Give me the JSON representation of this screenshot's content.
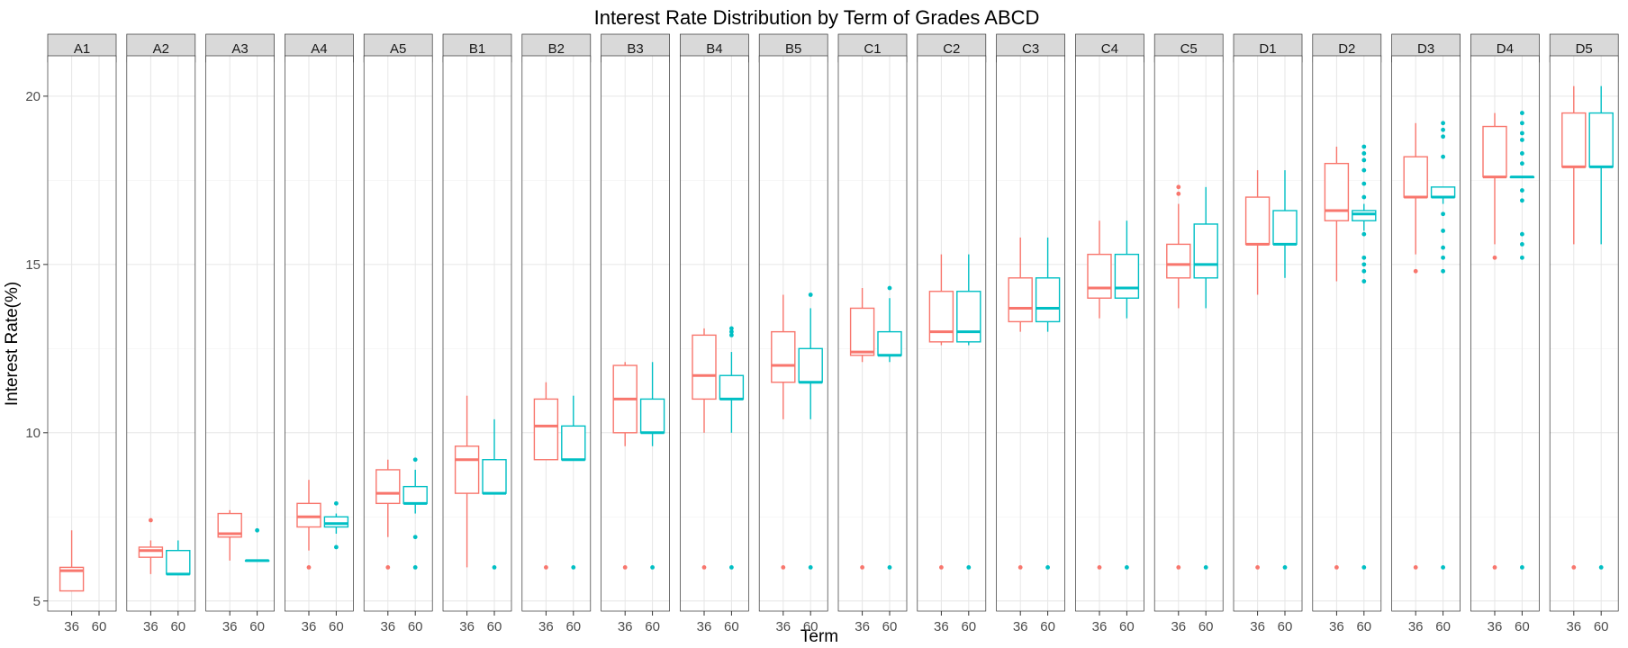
{
  "chart_data": {
    "type": "boxplot",
    "title": "Interest Rate Distribution by Term of Grades ABCD",
    "xlabel": "Term",
    "ylabel": "Interest Rate(%)",
    "ylim": [
      4.7,
      21.2
    ],
    "y_ticks": [
      5,
      10,
      15,
      20
    ],
    "grid": true,
    "legend": "none",
    "categories": [
      "36",
      "60"
    ],
    "series_colors": {
      "36": "#F8766D",
      "60": "#00BFC4"
    },
    "panels": [
      {
        "label": "A1",
        "boxes": [
          {
            "term": "36",
            "lower_whisker": 5.3,
            "q1": 5.3,
            "median": 5.9,
            "q3": 6.0,
            "upper_whisker": 7.1,
            "outliers": []
          }
        ]
      },
      {
        "label": "A2",
        "boxes": [
          {
            "term": "36",
            "lower_whisker": 5.8,
            "q1": 6.3,
            "median": 6.5,
            "q3": 6.6,
            "upper_whisker": 6.8,
            "outliers": [
              7.4
            ]
          },
          {
            "term": "60",
            "lower_whisker": 5.8,
            "q1": 5.8,
            "median": 5.8,
            "q3": 6.5,
            "upper_whisker": 6.8,
            "outliers": []
          }
        ]
      },
      {
        "label": "A3",
        "boxes": [
          {
            "term": "36",
            "lower_whisker": 6.2,
            "q1": 6.9,
            "median": 7.0,
            "q3": 7.6,
            "upper_whisker": 7.7,
            "outliers": []
          },
          {
            "term": "60",
            "lower_whisker": 6.2,
            "q1": 6.2,
            "median": 6.2,
            "q3": 6.2,
            "upper_whisker": 6.2,
            "outliers": [
              7.1
            ]
          }
        ]
      },
      {
        "label": "A4",
        "boxes": [
          {
            "term": "36",
            "lower_whisker": 6.5,
            "q1": 7.2,
            "median": 7.5,
            "q3": 7.9,
            "upper_whisker": 8.6,
            "outliers": [
              6.0
            ]
          },
          {
            "term": "60",
            "lower_whisker": 7.0,
            "q1": 7.2,
            "median": 7.3,
            "q3": 7.5,
            "upper_whisker": 7.6,
            "outliers": [
              6.6,
              7.9
            ]
          }
        ]
      },
      {
        "label": "A5",
        "boxes": [
          {
            "term": "36",
            "lower_whisker": 6.9,
            "q1": 7.9,
            "median": 8.2,
            "q3": 8.9,
            "upper_whisker": 9.2,
            "outliers": [
              6.0
            ]
          },
          {
            "term": "60",
            "lower_whisker": 7.6,
            "q1": 7.9,
            "median": 7.9,
            "q3": 8.4,
            "upper_whisker": 8.9,
            "outliers": [
              6.9,
              9.2,
              6.0
            ]
          }
        ]
      },
      {
        "label": "B1",
        "boxes": [
          {
            "term": "36",
            "lower_whisker": 6.0,
            "q1": 8.2,
            "median": 9.2,
            "q3": 9.6,
            "upper_whisker": 11.1,
            "outliers": []
          },
          {
            "term": "60",
            "lower_whisker": 8.2,
            "q1": 8.2,
            "median": 8.2,
            "q3": 9.2,
            "upper_whisker": 10.4,
            "outliers": [
              6.0
            ]
          }
        ]
      },
      {
        "label": "B2",
        "boxes": [
          {
            "term": "36",
            "lower_whisker": 9.2,
            "q1": 9.2,
            "median": 10.2,
            "q3": 11.0,
            "upper_whisker": 11.5,
            "outliers": [
              6.0
            ]
          },
          {
            "term": "60",
            "lower_whisker": 9.2,
            "q1": 9.2,
            "median": 9.2,
            "q3": 10.2,
            "upper_whisker": 11.1,
            "outliers": [
              6.0
            ]
          }
        ]
      },
      {
        "label": "B3",
        "boxes": [
          {
            "term": "36",
            "lower_whisker": 9.6,
            "q1": 10.0,
            "median": 11.0,
            "q3": 12.0,
            "upper_whisker": 12.1,
            "outliers": [
              6.0
            ]
          },
          {
            "term": "60",
            "lower_whisker": 9.6,
            "q1": 10.0,
            "median": 10.0,
            "q3": 11.0,
            "upper_whisker": 12.1,
            "outliers": [
              6.0
            ]
          }
        ]
      },
      {
        "label": "B4",
        "boxes": [
          {
            "term": "36",
            "lower_whisker": 10.0,
            "q1": 11.0,
            "median": 11.7,
            "q3": 12.9,
            "upper_whisker": 13.1,
            "outliers": [
              6.0
            ]
          },
          {
            "term": "60",
            "lower_whisker": 10.0,
            "q1": 11.0,
            "median": 11.0,
            "q3": 11.7,
            "upper_whisker": 12.4,
            "outliers": [
              12.9,
              13.0,
              13.1,
              6.0
            ]
          }
        ]
      },
      {
        "label": "B5",
        "boxes": [
          {
            "term": "36",
            "lower_whisker": 10.4,
            "q1": 11.5,
            "median": 12.0,
            "q3": 13.0,
            "upper_whisker": 14.1,
            "outliers": [
              6.0
            ]
          },
          {
            "term": "60",
            "lower_whisker": 10.4,
            "q1": 11.5,
            "median": 11.5,
            "q3": 12.5,
            "upper_whisker": 13.7,
            "outliers": [
              14.1,
              6.0
            ]
          }
        ]
      },
      {
        "label": "C1",
        "boxes": [
          {
            "term": "36",
            "lower_whisker": 12.1,
            "q1": 12.3,
            "median": 12.4,
            "q3": 13.7,
            "upper_whisker": 14.3,
            "outliers": [
              6.0
            ]
          },
          {
            "term": "60",
            "lower_whisker": 12.1,
            "q1": 12.3,
            "median": 12.3,
            "q3": 13.0,
            "upper_whisker": 14.0,
            "outliers": [
              14.3,
              6.0
            ]
          }
        ]
      },
      {
        "label": "C2",
        "boxes": [
          {
            "term": "36",
            "lower_whisker": 12.6,
            "q1": 12.7,
            "median": 13.0,
            "q3": 14.2,
            "upper_whisker": 15.3,
            "outliers": [
              6.0
            ]
          },
          {
            "term": "60",
            "lower_whisker": 12.6,
            "q1": 12.7,
            "median": 13.0,
            "q3": 14.2,
            "upper_whisker": 15.3,
            "outliers": [
              6.0
            ]
          }
        ]
      },
      {
        "label": "C3",
        "boxes": [
          {
            "term": "36",
            "lower_whisker": 13.0,
            "q1": 13.3,
            "median": 13.7,
            "q3": 14.6,
            "upper_whisker": 15.8,
            "outliers": [
              6.0
            ]
          },
          {
            "term": "60",
            "lower_whisker": 13.0,
            "q1": 13.3,
            "median": 13.7,
            "q3": 14.6,
            "upper_whisker": 15.8,
            "outliers": [
              6.0
            ]
          }
        ]
      },
      {
        "label": "C4",
        "boxes": [
          {
            "term": "36",
            "lower_whisker": 13.4,
            "q1": 14.0,
            "median": 14.3,
            "q3": 15.3,
            "upper_whisker": 16.3,
            "outliers": [
              6.0
            ]
          },
          {
            "term": "60",
            "lower_whisker": 13.4,
            "q1": 14.0,
            "median": 14.3,
            "q3": 15.3,
            "upper_whisker": 16.3,
            "outliers": [
              6.0
            ]
          }
        ]
      },
      {
        "label": "C5",
        "boxes": [
          {
            "term": "36",
            "lower_whisker": 13.7,
            "q1": 14.6,
            "median": 15.0,
            "q3": 15.6,
            "upper_whisker": 16.8,
            "outliers": [
              17.1,
              17.3,
              6.0
            ]
          },
          {
            "term": "60",
            "lower_whisker": 13.7,
            "q1": 14.6,
            "median": 15.0,
            "q3": 16.2,
            "upper_whisker": 17.3,
            "outliers": [
              6.0
            ]
          }
        ]
      },
      {
        "label": "D1",
        "boxes": [
          {
            "term": "36",
            "lower_whisker": 14.1,
            "q1": 15.6,
            "median": 15.6,
            "q3": 17.0,
            "upper_whisker": 17.8,
            "outliers": [
              6.0
            ]
          },
          {
            "term": "60",
            "lower_whisker": 14.6,
            "q1": 15.6,
            "median": 15.6,
            "q3": 16.6,
            "upper_whisker": 17.8,
            "outliers": [
              6.0
            ]
          }
        ]
      },
      {
        "label": "D2",
        "boxes": [
          {
            "term": "36",
            "lower_whisker": 14.5,
            "q1": 16.3,
            "median": 16.6,
            "q3": 18.0,
            "upper_whisker": 18.5,
            "outliers": [
              6.0
            ]
          },
          {
            "term": "60",
            "lower_whisker": 16.0,
            "q1": 16.3,
            "median": 16.5,
            "q3": 16.6,
            "upper_whisker": 16.8,
            "outliers": [
              14.5,
              14.8,
              15.0,
              15.2,
              15.9,
              17.0,
              17.4,
              17.8,
              18.1,
              18.3,
              18.5,
              6.0
            ]
          }
        ]
      },
      {
        "label": "D3",
        "boxes": [
          {
            "term": "36",
            "lower_whisker": 15.3,
            "q1": 17.0,
            "median": 17.0,
            "q3": 18.2,
            "upper_whisker": 19.2,
            "outliers": [
              14.8,
              6.0
            ]
          },
          {
            "term": "60",
            "lower_whisker": 16.8,
            "q1": 17.0,
            "median": 17.0,
            "q3": 17.3,
            "upper_whisker": 17.3,
            "outliers": [
              14.8,
              15.2,
              15.5,
              16.0,
              16.5,
              18.2,
              18.8,
              19.0,
              19.2,
              6.0
            ]
          }
        ]
      },
      {
        "label": "D4",
        "boxes": [
          {
            "term": "36",
            "lower_whisker": 15.6,
            "q1": 17.6,
            "median": 17.6,
            "q3": 19.1,
            "upper_whisker": 19.5,
            "outliers": [
              15.2,
              6.0
            ]
          },
          {
            "term": "60",
            "lower_whisker": 17.6,
            "q1": 17.6,
            "median": 17.6,
            "q3": 17.6,
            "upper_whisker": 17.6,
            "outliers": [
              15.2,
              15.6,
              15.9,
              16.9,
              17.2,
              18.0,
              18.3,
              18.7,
              18.9,
              19.2,
              19.5,
              6.0
            ]
          }
        ]
      },
      {
        "label": "D5",
        "boxes": [
          {
            "term": "36",
            "lower_whisker": 15.6,
            "q1": 17.9,
            "median": 17.9,
            "q3": 19.5,
            "upper_whisker": 20.3,
            "outliers": [
              6.0
            ]
          },
          {
            "term": "60",
            "lower_whisker": 15.6,
            "q1": 17.9,
            "median": 17.9,
            "q3": 19.5,
            "upper_whisker": 20.3,
            "outliers": [
              6.0
            ]
          }
        ]
      }
    ]
  }
}
